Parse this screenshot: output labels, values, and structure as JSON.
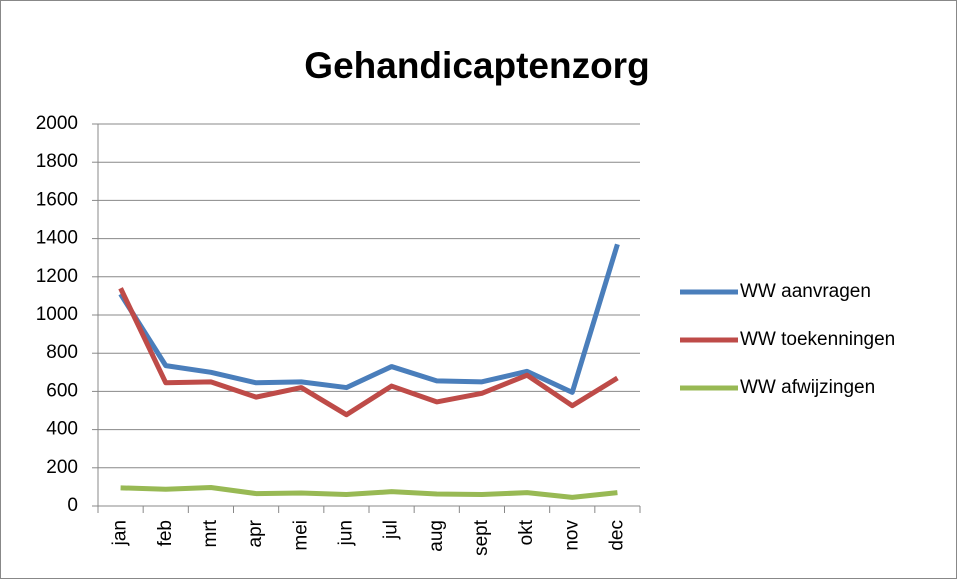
{
  "chart_data": {
    "type": "line",
    "title": "Gehandicaptenzorg",
    "categories": [
      "jan",
      "feb",
      "mrt",
      "apr",
      "mei",
      "jun",
      "jul",
      "aug",
      "sept",
      "okt",
      "nov",
      "dec"
    ],
    "series": [
      {
        "name": "WW aanvragen",
        "color": "#4a7ebb",
        "values": [
          1110,
          735,
          700,
          645,
          650,
          620,
          730,
          655,
          650,
          705,
          595,
          1370
        ]
      },
      {
        "name": "WW toekenningen",
        "color": "#be4b48",
        "values": [
          1140,
          645,
          650,
          570,
          620,
          478,
          628,
          545,
          590,
          685,
          525,
          670
        ]
      },
      {
        "name": "WW afwijzingen",
        "color": "#98b954",
        "values": [
          95,
          88,
          97,
          65,
          68,
          60,
          75,
          63,
          60,
          70,
          45,
          70
        ]
      }
    ],
    "ylim": [
      0,
      2000
    ],
    "yticks": [
      0,
      200,
      400,
      600,
      800,
      1000,
      1200,
      1400,
      1600,
      1800,
      2000
    ],
    "grid": true,
    "legend": "right"
  }
}
